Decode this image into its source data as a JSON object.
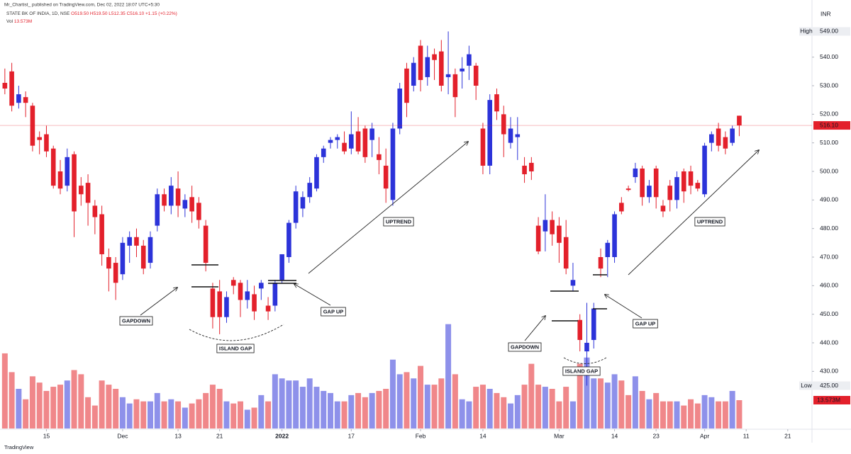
{
  "publisher": "Mr_Chartist_ published on TradingView.com, Dec 02, 2022 18:07 UTC+5:30",
  "footer": "TradingView",
  "chart_data": {
    "type": "candlestick",
    "title": "STATE BK OF INDIA, 1D, NSE",
    "legend_values": [
      "O519.50",
      "H519.50",
      "L512.35",
      "C516.10",
      "+1.15 (+0.22%)"
    ],
    "volume_label": "Vol",
    "volume_value_label": "13.573M",
    "currency": "INR",
    "up_color": "#2c33d9",
    "down_color": "#e3202b",
    "volume_up_color": "#8e91ea",
    "volume_down_color": "#f0878a",
    "open": [
      531,
      535,
      524,
      526,
      523,
      512,
      513,
      508,
      500,
      495,
      506,
      495,
      496,
      488,
      485,
      470,
      468,
      464,
      474,
      477,
      474,
      468,
      481,
      492,
      488,
      494,
      487,
      491,
      489,
      481,
      459,
      458,
      449,
      462,
      461,
      455,
      457,
      459,
      453,
      453,
      462,
      470,
      482,
      487,
      491,
      494,
      505,
      510,
      511,
      510,
      508,
      514,
      515,
      511,
      506,
      502,
      490,
      515,
      536,
      530,
      544,
      533,
      541,
      542,
      533,
      534,
      535,
      537,
      537,
      515,
      502,
      527,
      520,
      510,
      512,
      502,
      503,
      481,
      479,
      483,
      481,
      477,
      460,
      448,
      437,
      441,
      470,
      470,
      470,
      489,
      494,
      498,
      501,
      491,
      501,
      488,
      495,
      490,
      500,
      500,
      496,
      492,
      510,
      515,
      512,
      510,
      519.5
    ],
    "high": [
      536,
      538,
      530,
      528,
      524,
      514,
      516,
      509,
      504,
      508,
      507,
      498,
      499,
      490,
      488,
      473,
      470,
      477,
      479,
      480,
      476,
      479,
      494,
      494,
      498,
      500,
      492,
      495,
      491,
      483,
      461,
      462,
      458,
      463,
      462,
      462,
      460,
      462,
      456,
      462,
      471,
      483,
      495,
      493,
      498,
      506,
      509,
      512,
      513,
      514,
      521,
      519,
      516,
      517,
      512,
      508,
      517,
      531,
      538,
      540,
      546,
      544,
      543,
      546,
      549,
      536,
      540,
      544,
      538,
      517,
      527,
      529,
      523,
      519,
      519,
      505,
      505,
      484,
      492,
      486,
      484,
      483,
      468,
      450,
      454,
      454,
      473,
      476,
      486,
      491,
      495,
      503,
      502,
      497,
      502,
      490,
      497,
      500,
      501,
      502,
      497,
      510,
      514,
      517,
      514,
      516,
      519.5
    ],
    "low": [
      527,
      521,
      522,
      519,
      507,
      506,
      505,
      494,
      492,
      493,
      477,
      488,
      481,
      478,
      467,
      458,
      455,
      462,
      468,
      470,
      464,
      466,
      479,
      486,
      485,
      484,
      484,
      482,
      480,
      465,
      445,
      443,
      447,
      457,
      449,
      452,
      448,
      455,
      448,
      451,
      461,
      468,
      480,
      484,
      489,
      493,
      503,
      508,
      508,
      506,
      506,
      506,
      503,
      505,
      499,
      489,
      488,
      513,
      519,
      528,
      528,
      530,
      532,
      528,
      527,
      519,
      529,
      532,
      525,
      499,
      499,
      518,
      505,
      508,
      504,
      496,
      497,
      471,
      472,
      474,
      468,
      464,
      458,
      437,
      425,
      438,
      463,
      463,
      468,
      485,
      493,
      496,
      488,
      489,
      487,
      484,
      486,
      487,
      489,
      492,
      493,
      491,
      507,
      507,
      506,
      509,
      512.35
    ],
    "close": [
      529,
      523,
      527,
      524,
      509,
      511,
      507,
      495,
      494,
      505,
      486,
      492,
      489,
      484,
      471,
      466,
      461,
      475,
      477,
      474,
      466,
      477,
      492,
      488,
      495,
      488,
      490,
      486,
      483,
      468,
      449,
      449,
      456,
      460,
      455,
      458,
      451,
      461,
      451,
      461,
      471,
      482,
      493,
      491,
      496,
      505,
      508,
      511,
      512,
      507,
      513,
      507,
      505,
      515,
      504,
      494,
      515,
      529,
      524,
      538,
      532,
      540,
      539,
      530,
      534,
      526,
      536,
      541,
      530,
      502,
      525,
      521,
      513,
      515,
      513,
      499,
      500,
      472,
      483,
      478,
      475,
      466,
      462,
      441,
      440,
      452,
      466,
      475,
      485,
      486,
      493.5,
      501,
      491,
      495,
      491,
      486,
      490,
      498,
      493,
      495,
      494,
      509,
      513,
      509,
      508,
      515,
      516.1
    ],
    "volume": [
      36,
      27,
      19,
      14,
      25,
      22,
      18,
      20,
      21,
      23,
      28,
      26,
      15,
      11,
      23,
      21,
      19,
      15,
      12,
      14,
      13,
      13,
      17,
      13,
      14,
      13,
      10,
      12,
      14,
      17,
      21,
      19,
      13,
      12,
      13,
      9,
      10,
      16,
      13,
      26,
      24,
      23,
      23,
      20,
      24,
      20,
      18,
      17,
      13,
      13,
      16,
      17,
      15,
      17,
      18,
      19,
      33,
      26,
      27,
      24,
      30,
      21,
      21,
      24,
      50,
      26,
      14,
      13,
      20,
      21,
      19,
      17,
      15,
      12,
      16,
      21,
      31,
      21,
      20,
      19,
      13,
      20,
      13,
      31,
      34,
      24,
      24,
      22,
      26,
      23,
      16,
      25,
      18,
      14,
      17,
      13,
      13,
      13,
      11,
      14,
      12,
      16,
      15,
      13,
      13,
      18,
      13.573
    ],
    "ylim": [
      410,
      560
    ],
    "yticks": [
      {
        "value": 430,
        "label": "430.00"
      },
      {
        "value": 440,
        "label": "440.00"
      },
      {
        "value": 450,
        "label": "450.00"
      },
      {
        "value": 460,
        "label": "460.00"
      },
      {
        "value": 470,
        "label": "470.00"
      },
      {
        "value": 480,
        "label": "480.00"
      },
      {
        "value": 490,
        "label": "490.00"
      },
      {
        "value": 500,
        "label": "500.00"
      },
      {
        "value": 510,
        "label": "510.00"
      },
      {
        "value": 520,
        "label": "520.00"
      },
      {
        "value": 530,
        "label": "530.00"
      },
      {
        "value": 540,
        "label": "540.00"
      }
    ],
    "xlim": [
      -0.7,
      116.5
    ],
    "xticks": [
      {
        "value": 6,
        "label": "15"
      },
      {
        "value": 17,
        "label": "Dec"
      },
      {
        "value": 25,
        "label": "13"
      },
      {
        "value": 31,
        "label": "21"
      },
      {
        "value": 40,
        "label": "2022"
      },
      {
        "value": 50,
        "label": "17"
      },
      {
        "value": 60,
        "label": "Feb"
      },
      {
        "value": 69,
        "label": "14"
      },
      {
        "value": 80,
        "label": "Mar"
      },
      {
        "value": 88,
        "label": "14"
      },
      {
        "value": 94,
        "label": "23"
      },
      {
        "value": 101,
        "label": "Apr"
      },
      {
        "value": 107,
        "label": "11"
      },
      {
        "value": 113,
        "label": "21"
      }
    ],
    "markers": [
      {
        "name": "High",
        "value": 549,
        "label": "549.00"
      },
      {
        "name": "Low",
        "value": 425,
        "label": "425.00"
      },
      {
        "value": 516.1,
        "label": "516.10"
      }
    ],
    "volume_marker": {
      "value": 13.573,
      "label": "13.573M"
    },
    "annotations": [
      "GAPDOWN",
      "ISLAND GAP",
      "GAP UP",
      "UPTREND",
      "UPTREND",
      "GAPDOWN",
      "ISLAND GAP",
      "GAP UP"
    ]
  }
}
